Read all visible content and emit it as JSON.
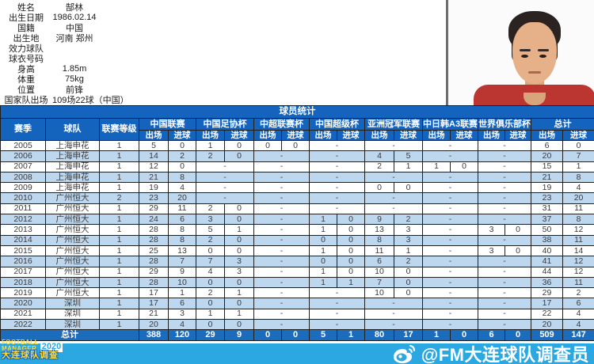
{
  "profile": {
    "rows": [
      {
        "label": "姓名",
        "value": "郜林"
      },
      {
        "label": "出生日期",
        "value": "1986.02.14"
      },
      {
        "label": "国籍",
        "value": "中国"
      },
      {
        "label": "出生地",
        "value": "河南 郑州"
      },
      {
        "label": "效力球队",
        "value": ""
      },
      {
        "label": "球衣号码",
        "value": ""
      },
      {
        "label": "身高",
        "value": "1.85m"
      },
      {
        "label": "体重",
        "value": "75kg"
      },
      {
        "label": "位置",
        "value": "前锋"
      },
      {
        "label": "国家队出场",
        "value": "109场22球（中国）"
      }
    ]
  },
  "table": {
    "title": "球员统计",
    "fixed_headers": [
      "赛季",
      "球队",
      "联赛等级"
    ],
    "groups": [
      "中国联赛",
      "中国足协杯",
      "中超联赛杯",
      "中国超级杯",
      "亚洲冠军联赛",
      "中日韩A3联赛",
      "世界俱乐部杯",
      "总计"
    ],
    "sub_headers": [
      "出场",
      "进球"
    ],
    "rows": [
      {
        "season": "2005",
        "team": "上海申花",
        "level": "1",
        "stats": [
          [
            5,
            0
          ],
          [
            1,
            0
          ],
          [
            0,
            0
          ],
          "-",
          "-",
          "-",
          "-",
          [
            6,
            0
          ]
        ]
      },
      {
        "season": "2006",
        "team": "上海申花",
        "level": "1",
        "stats": [
          [
            14,
            2
          ],
          [
            2,
            0
          ],
          "-",
          "-",
          [
            4,
            5
          ],
          "-",
          "-",
          [
            20,
            7
          ]
        ]
      },
      {
        "season": "2007",
        "team": "上海申花",
        "level": "1",
        "stats": [
          [
            12,
            0
          ],
          "-",
          "-",
          "-",
          [
            2,
            1
          ],
          [
            1,
            0
          ],
          "-",
          [
            15,
            1
          ]
        ]
      },
      {
        "season": "2008",
        "team": "上海申花",
        "level": "1",
        "stats": [
          [
            21,
            8
          ],
          "-",
          "-",
          "-",
          "-",
          "-",
          "-",
          [
            21,
            8
          ]
        ]
      },
      {
        "season": "2009",
        "team": "上海申花",
        "level": "1",
        "stats": [
          [
            19,
            4
          ],
          "-",
          "-",
          "-",
          [
            0,
            0
          ],
          "-",
          "-",
          [
            19,
            4
          ]
        ]
      },
      {
        "season": "2010",
        "team": "广州恒大",
        "level": "2",
        "stats": [
          [
            23,
            20
          ],
          "-",
          "-",
          "-",
          "-",
          "-",
          "-",
          [
            23,
            20
          ]
        ]
      },
      {
        "season": "2011",
        "team": "广州恒大",
        "level": "1",
        "stats": [
          [
            29,
            11
          ],
          [
            2,
            0
          ],
          "-",
          "-",
          "-",
          "-",
          "-",
          [
            31,
            11
          ]
        ]
      },
      {
        "season": "2012",
        "team": "广州恒大",
        "level": "1",
        "stats": [
          [
            24,
            6
          ],
          [
            3,
            0
          ],
          "-",
          [
            1,
            0
          ],
          [
            9,
            2
          ],
          "-",
          "-",
          [
            37,
            8
          ]
        ]
      },
      {
        "season": "2013",
        "team": "广州恒大",
        "level": "1",
        "stats": [
          [
            28,
            8
          ],
          [
            5,
            1
          ],
          "-",
          [
            1,
            0
          ],
          [
            13,
            3
          ],
          "-",
          [
            3,
            0
          ],
          [
            50,
            12
          ]
        ]
      },
      {
        "season": "2014",
        "team": "广州恒大",
        "level": "1",
        "stats": [
          [
            28,
            8
          ],
          [
            2,
            0
          ],
          "-",
          [
            0,
            0
          ],
          [
            8,
            3
          ],
          "-",
          "-",
          [
            38,
            11
          ]
        ]
      },
      {
        "season": "2015",
        "team": "广州恒大",
        "level": "1",
        "stats": [
          [
            25,
            13
          ],
          [
            0,
            0
          ],
          "-",
          [
            1,
            0
          ],
          [
            11,
            1
          ],
          "-",
          [
            3,
            0
          ],
          [
            40,
            14
          ]
        ]
      },
      {
        "season": "2016",
        "team": "广州恒大",
        "level": "1",
        "stats": [
          [
            28,
            7
          ],
          [
            7,
            3
          ],
          "-",
          [
            0,
            0
          ],
          [
            6,
            2
          ],
          "-",
          "-",
          [
            41,
            12
          ]
        ]
      },
      {
        "season": "2017",
        "team": "广州恒大",
        "level": "1",
        "stats": [
          [
            29,
            9
          ],
          [
            4,
            3
          ],
          "-",
          [
            1,
            0
          ],
          [
            10,
            0
          ],
          "-",
          "-",
          [
            44,
            12
          ]
        ]
      },
      {
        "season": "2018",
        "team": "广州恒大",
        "level": "1",
        "stats": [
          [
            28,
            10
          ],
          [
            0,
            0
          ],
          "-",
          [
            1,
            1
          ],
          [
            7,
            0
          ],
          "-",
          "-",
          [
            36,
            11
          ]
        ]
      },
      {
        "season": "2019",
        "team": "广州恒大",
        "level": "1",
        "stats": [
          [
            17,
            1
          ],
          [
            2,
            1
          ],
          "-",
          "-",
          [
            10,
            0
          ],
          "-",
          "-",
          [
            29,
            2
          ]
        ]
      },
      {
        "season": "2020",
        "team": "深圳",
        "level": "1",
        "stats": [
          [
            17,
            6
          ],
          [
            0,
            0
          ],
          "-",
          "-",
          "-",
          "-",
          "-",
          [
            17,
            6
          ]
        ]
      },
      {
        "season": "2021",
        "team": "深圳",
        "level": "1",
        "stats": [
          [
            21,
            3
          ],
          [
            1,
            1
          ],
          "-",
          "-",
          "-",
          "-",
          "-",
          [
            22,
            4
          ]
        ]
      },
      {
        "season": "2022",
        "team": "深圳",
        "level": "1",
        "stats": [
          [
            20,
            4
          ],
          [
            0,
            0
          ],
          "-",
          "-",
          "-",
          "-",
          "-",
          [
            20,
            4
          ]
        ]
      }
    ],
    "total": {
      "label": "总计",
      "stats": [
        [
          388,
          120
        ],
        [
          29,
          9
        ],
        [
          0,
          0
        ],
        [
          5,
          1
        ],
        [
          80,
          17
        ],
        [
          1,
          0
        ],
        [
          6,
          0
        ],
        [
          509,
          147
        ]
      ]
    },
    "dash": "-"
  },
  "footer": {
    "logo": {
      "line1": "FOOTBALL",
      "line2": "MANAGER",
      "year": "2020",
      "line3": "大连球队调查"
    },
    "watermark": "@FM大连球队调查员"
  },
  "colors": {
    "header_blue": "#1464BE",
    "total_row_blue": "#1C6CBE",
    "stripe_blue": "#BDD7EE",
    "bottom_bar_blue": "#2BA8E2",
    "logo_yellow": "#FFD935",
    "jersey_red": "#BB3531"
  }
}
